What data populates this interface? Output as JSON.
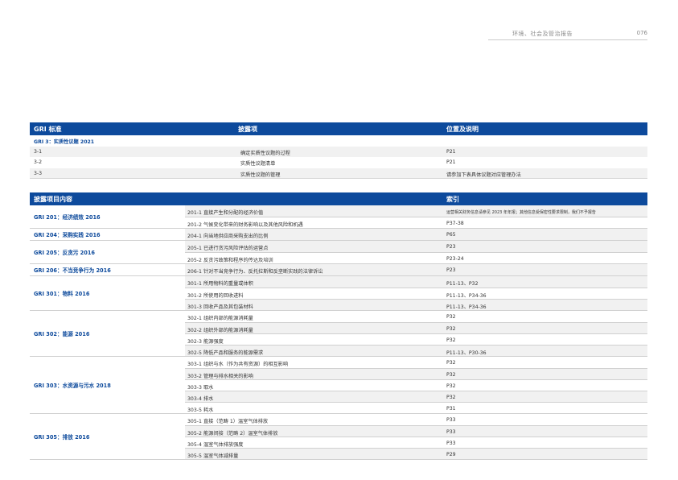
{
  "header": {
    "title": "环境、社会及管治报告",
    "page_number": "076"
  },
  "table1": {
    "headers": [
      "GRI 标准",
      "披露项",
      "位置及说明"
    ],
    "category": "GRI 3：实质性议题 2021",
    "rows": [
      {
        "code": "3-1",
        "disclosure": "确定实质性议题的过程",
        "location": "P21"
      },
      {
        "code": "3-2",
        "disclosure": "实质性议题清单",
        "location": "P21"
      },
      {
        "code": "3-3",
        "disclosure": "实质性议题的管理",
        "location": "请参加下表具体议题对应管理办法"
      }
    ]
  },
  "table2": {
    "headers": [
      "披露项目内容",
      "索引"
    ],
    "groups": [
      {
        "topic": "GRI 201：经济绩效 2016",
        "items": [
          {
            "disclosure": "201-1 直接产生和分配的经济价值",
            "index": "运营相关财务信息请参见 2023 年年报；其他信息受保密性要求限制，我们不予报告"
          },
          {
            "disclosure": "201-2 气候变化带来的财务影响以及其他风险和机遇",
            "index": "P37-38"
          }
        ]
      },
      {
        "topic": "GRI 204：采购实践 2016",
        "items": [
          {
            "disclosure": "204-1 向当地供应商采购支出的比例",
            "index": "P65"
          }
        ]
      },
      {
        "topic": "GRI 205：反贪污 2016",
        "items": [
          {
            "disclosure": "205-1 已进行贪污风险评估的运营点",
            "index": "P23"
          },
          {
            "disclosure": "205-2 反贪污政策和程序的传达及培训",
            "index": "P23-24"
          }
        ]
      },
      {
        "topic": "GRI 206：不当竞争行为 2016",
        "items": [
          {
            "disclosure": "206-1 针对不当竞争行为、反托拉斯和反垄断实践的法律诉讼",
            "index": "P23"
          }
        ]
      },
      {
        "topic": "GRI 301：物料 2016",
        "items": [
          {
            "disclosure": "301-1 所用物料的重量或体积",
            "index": "P11-13、P32"
          },
          {
            "disclosure": "301-2 所使用的回收进料",
            "index": "P11-13、P34-36"
          },
          {
            "disclosure": "301-3 回收产品及其包装材料",
            "index": "P11-13、P34-36"
          }
        ]
      },
      {
        "topic": "GRI 302：能源 2016",
        "items": [
          {
            "disclosure": "302-1 组织内部的能源消耗量",
            "index": "P32"
          },
          {
            "disclosure": "302-2 组织外部的能源消耗量",
            "index": "P32"
          },
          {
            "disclosure": "302-3 能源强度",
            "index": "P32"
          },
          {
            "disclosure": "302-5 降低产品和服务的能源需求",
            "index": "P11-13、P30-36"
          }
        ]
      },
      {
        "topic": "GRI 303：水资源与污水 2018",
        "items": [
          {
            "disclosure": "303-1 组织与水（作为共有资源）的相互影响",
            "index": "P32"
          },
          {
            "disclosure": "303-2 管理与排水相关的影响",
            "index": "P32"
          },
          {
            "disclosure": "303-3 取水",
            "index": "P32"
          },
          {
            "disclosure": "303-4 排水",
            "index": "P32"
          },
          {
            "disclosure": "303-5 耗水",
            "index": "P31"
          }
        ]
      },
      {
        "topic": "GRI 305：排放 2016",
        "items": [
          {
            "disclosure": "305-1 直接（范畴 1）温室气体排放",
            "index": "P33"
          },
          {
            "disclosure": "305-2 能源间接（范畴 2）温室气体排放",
            "index": "P33"
          },
          {
            "disclosure": "305-4 温室气体排放强度",
            "index": "P33"
          },
          {
            "disclosure": "305-5 温室气体减排量",
            "index": "P29"
          }
        ]
      }
    ]
  }
}
